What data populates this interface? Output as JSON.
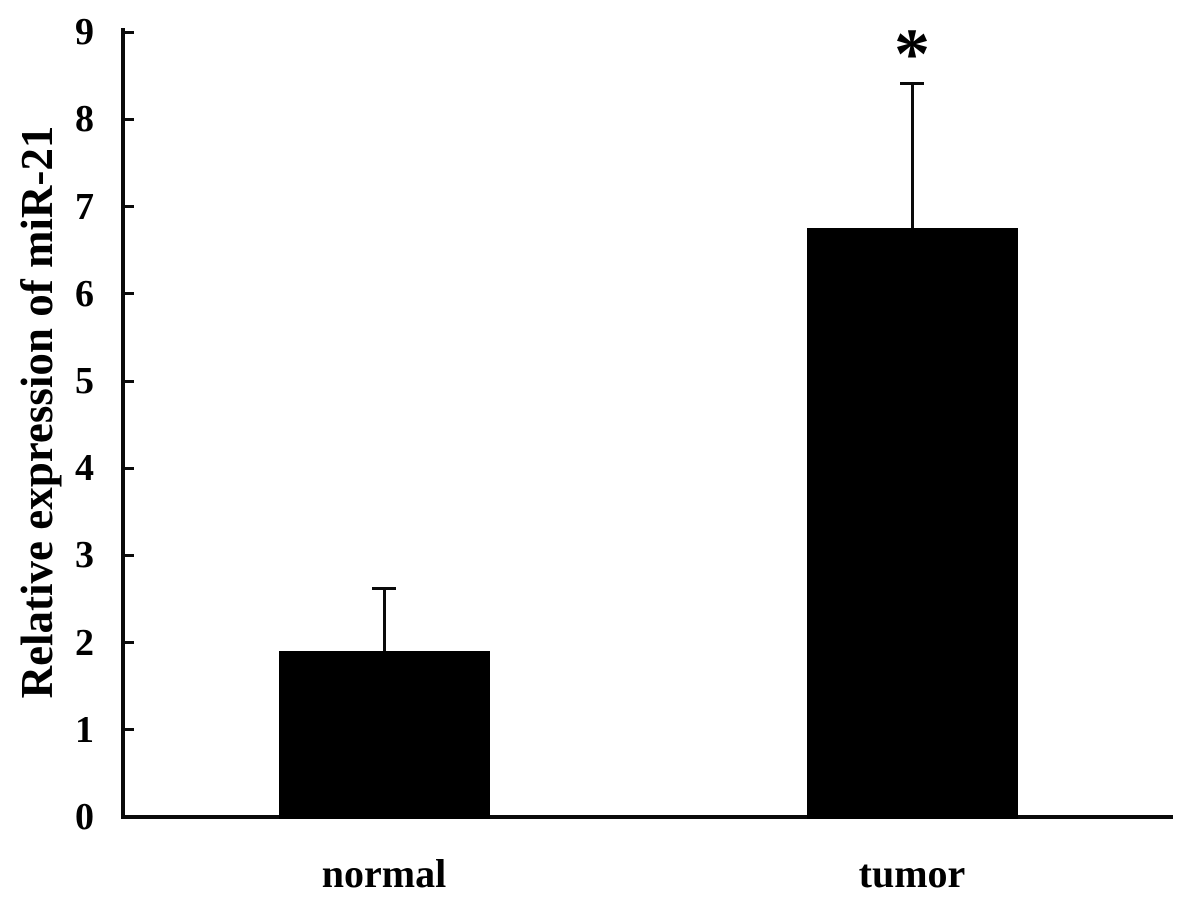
{
  "figure": {
    "background": "#ffffff",
    "ink_color": "#0a0a0a"
  },
  "chart_data": {
    "type": "bar",
    "title": "",
    "ylabel": "Relative expression of miR-21",
    "xlabel": "",
    "categories": [
      "normal",
      "tumor"
    ],
    "values": [
      1.9,
      6.75
    ],
    "upper_errors": [
      0.72,
      1.66
    ],
    "ylim": [
      0,
      9
    ],
    "yticks": [
      0,
      1,
      2,
      3,
      4,
      5,
      6,
      7,
      8,
      9
    ],
    "bar_color": "#000000",
    "error_bars": "upper",
    "grid": false,
    "legend": "none",
    "annotations": [
      {
        "target": "tumor",
        "label": "*"
      }
    ]
  }
}
